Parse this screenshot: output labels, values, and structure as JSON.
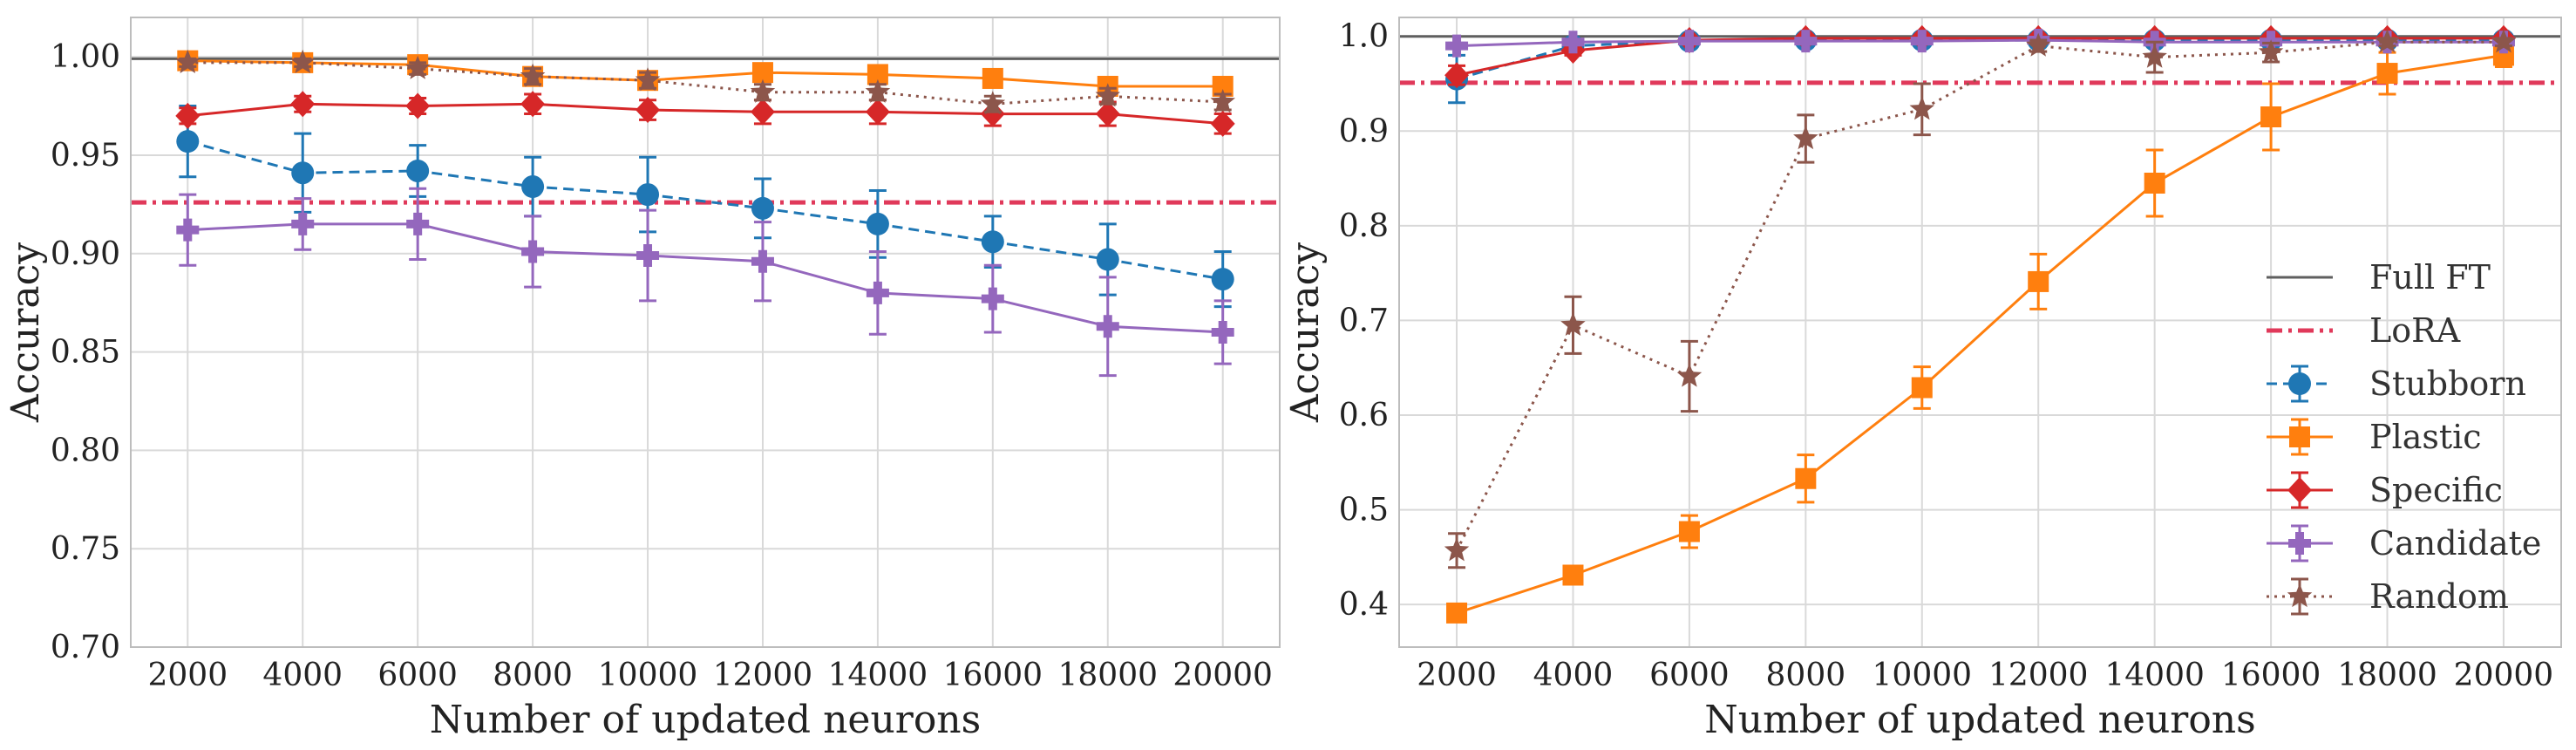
{
  "chart_data": [
    {
      "type": "line",
      "xlabel": "Number of updated neurons",
      "ylabel": "Accuracy",
      "x": [
        2000,
        4000,
        6000,
        8000,
        10000,
        12000,
        14000,
        16000,
        18000,
        20000
      ],
      "xticks": [
        "2000",
        "4000",
        "6000",
        "8000",
        "10000",
        "12000",
        "14000",
        "16000",
        "18000",
        "20000"
      ],
      "ylim": [
        0.7,
        1.02
      ],
      "yticks": [
        "0.70",
        "0.75",
        "0.80",
        "0.85",
        "0.90",
        "0.95",
        "1.00"
      ],
      "ytick_values": [
        0.7,
        0.75,
        0.8,
        0.85,
        0.9,
        0.95,
        1.0
      ],
      "grid": true,
      "baselines": [
        {
          "name": "Full FT",
          "value": 0.999,
          "color": "#5f5f5f",
          "style": "solid"
        },
        {
          "name": "LoRA",
          "value": 0.926,
          "color": "#e0395a",
          "style": "dashdot"
        }
      ],
      "series": [
        {
          "name": "Stubborn",
          "color": "#1f77b4",
          "marker": "circle",
          "line": "dashed",
          "values": [
            0.957,
            0.941,
            0.942,
            0.934,
            0.93,
            0.923,
            0.915,
            0.906,
            0.897,
            0.887
          ],
          "errors": [
            0.018,
            0.02,
            0.013,
            0.015,
            0.019,
            0.015,
            0.017,
            0.013,
            0.018,
            0.014
          ]
        },
        {
          "name": "Plastic",
          "color": "#ff7f0e",
          "marker": "square",
          "line": "solid",
          "values": [
            0.998,
            0.997,
            0.996,
            0.99,
            0.988,
            0.992,
            0.991,
            0.989,
            0.985,
            0.985
          ],
          "errors": [
            0.002,
            0.002,
            0.002,
            0.003,
            0.003,
            0.002,
            0.002,
            0.002,
            0.002,
            0.002
          ]
        },
        {
          "name": "Specific",
          "color": "#d62728",
          "marker": "diamond",
          "line": "solid",
          "values": [
            0.97,
            0.976,
            0.975,
            0.976,
            0.973,
            0.972,
            0.972,
            0.971,
            0.971,
            0.966
          ],
          "errors": [
            0.004,
            0.004,
            0.004,
            0.005,
            0.005,
            0.006,
            0.006,
            0.006,
            0.006,
            0.005
          ]
        },
        {
          "name": "Candidate",
          "color": "#9467bd",
          "marker": "plus",
          "line": "solid",
          "values": [
            0.912,
            0.915,
            0.915,
            0.901,
            0.899,
            0.896,
            0.88,
            0.877,
            0.863,
            0.86
          ],
          "errors": [
            0.018,
            0.013,
            0.018,
            0.018,
            0.023,
            0.02,
            0.021,
            0.017,
            0.025,
            0.016
          ]
        },
        {
          "name": "Random",
          "color": "#8c564b",
          "marker": "star",
          "line": "dotted",
          "values": [
            0.997,
            0.997,
            0.994,
            0.99,
            0.988,
            0.982,
            0.982,
            0.976,
            0.98,
            0.977
          ],
          "errors": [
            0.002,
            0.002,
            0.003,
            0.004,
            0.004,
            0.004,
            0.004,
            0.004,
            0.004,
            0.004
          ]
        }
      ]
    },
    {
      "type": "line",
      "xlabel": "Number of updated neurons",
      "ylabel": "Accuracy",
      "x": [
        2000,
        4000,
        6000,
        8000,
        10000,
        12000,
        14000,
        16000,
        18000,
        20000
      ],
      "xticks": [
        "2000",
        "4000",
        "6000",
        "8000",
        "10000",
        "12000",
        "14000",
        "16000",
        "18000",
        "20000"
      ],
      "ylim": [
        0.355,
        1.02
      ],
      "yticks": [
        "0.4",
        "0.5",
        "0.6",
        "0.7",
        "0.8",
        "0.9",
        "1.0"
      ],
      "ytick_values": [
        0.4,
        0.5,
        0.6,
        0.7,
        0.8,
        0.9,
        1.0
      ],
      "grid": true,
      "legend_position": "right",
      "baselines": [
        {
          "name": "Full FT",
          "value": 1.0,
          "color": "#5f5f5f",
          "style": "solid"
        },
        {
          "name": "LoRA",
          "value": 0.951,
          "color": "#e0395a",
          "style": "dashdot"
        }
      ],
      "series": [
        {
          "name": "Stubborn",
          "color": "#1f77b4",
          "marker": "circle",
          "line": "dashed",
          "values": [
            0.955,
            0.99,
            0.995,
            0.996,
            0.996,
            0.996,
            0.996,
            0.996,
            0.996,
            0.996
          ],
          "errors": [
            0.025,
            0.004,
            0.003,
            0.002,
            0.002,
            0.002,
            0.002,
            0.002,
            0.002,
            0.002
          ]
        },
        {
          "name": "Plastic",
          "color": "#ff7f0e",
          "marker": "square",
          "line": "solid",
          "values": [
            0.391,
            0.431,
            0.477,
            0.533,
            0.629,
            0.741,
            0.845,
            0.915,
            0.961,
            0.98
          ],
          "errors": [
            0.006,
            0.006,
            0.017,
            0.025,
            0.022,
            0.029,
            0.035,
            0.035,
            0.022,
            0.012
          ]
        },
        {
          "name": "Specific",
          "color": "#d62728",
          "marker": "diamond",
          "line": "solid",
          "values": [
            0.959,
            0.985,
            0.996,
            0.998,
            0.998,
            0.998,
            0.998,
            0.998,
            0.998,
            0.998
          ],
          "errors": [
            0.01,
            0.005,
            0.002,
            0.001,
            0.001,
            0.001,
            0.001,
            0.001,
            0.001,
            0.001
          ]
        },
        {
          "name": "Candidate",
          "color": "#9467bd",
          "marker": "plus",
          "line": "solid",
          "values": [
            0.99,
            0.994,
            0.995,
            0.995,
            0.995,
            0.996,
            0.994,
            0.994,
            0.994,
            0.994
          ],
          "errors": [
            0.003,
            0.003,
            0.003,
            0.003,
            0.003,
            0.003,
            0.003,
            0.003,
            0.003,
            0.003
          ]
        },
        {
          "name": "Random",
          "color": "#8c564b",
          "marker": "star",
          "line": "dotted",
          "values": [
            0.457,
            0.695,
            0.641,
            0.892,
            0.923,
            0.99,
            0.978,
            0.983,
            0.994,
            0.994
          ],
          "errors": [
            0.018,
            0.03,
            0.037,
            0.025,
            0.027,
            0.006,
            0.016,
            0.01,
            0.004,
            0.004
          ]
        }
      ]
    }
  ]
}
